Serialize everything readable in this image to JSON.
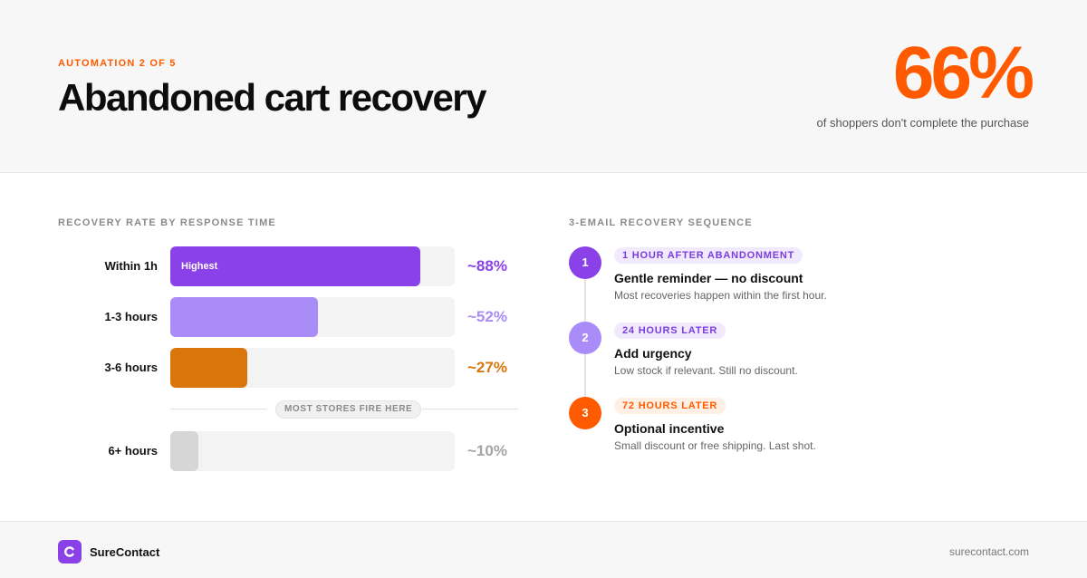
{
  "header": {
    "eyebrow": "AUTOMATION 2 OF 5",
    "title": "Abandoned cart recovery",
    "stat": "66%",
    "stat_caption": "of shoppers don't complete the purchase"
  },
  "chart_data": {
    "type": "bar",
    "title": "RECOVERY RATE BY RESPONSE TIME",
    "categories": [
      "Within 1h",
      "1-3 hours",
      "3-6 hours",
      "6+ hours"
    ],
    "values": [
      88,
      52,
      27,
      10
    ],
    "value_labels": [
      "~88%",
      "~52%",
      "~27%",
      "~10%"
    ],
    "bar_tags": [
      "Highest",
      "",
      "",
      ""
    ],
    "colors": [
      "#8a42e8",
      "#a98cf7",
      "#d9760b",
      "#d6d6d6"
    ],
    "value_colors": [
      "#8a42e8",
      "#a98cf7",
      "#d9760b",
      "#a5a5a5"
    ],
    "annotation": "MOST STORES FIRE HERE",
    "xlim": [
      0,
      100
    ],
    "grid": false,
    "orientation": "horizontal"
  },
  "sequence": {
    "title": "3-EMAIL RECOVERY SEQUENCE",
    "steps": [
      {
        "number": "1",
        "timing": "1 HOUR AFTER ABANDONMENT",
        "title": "Gentle reminder — no discount",
        "description": "Most recoveries happen within the first hour.",
        "dot_color": "#8a42e8",
        "pill_bg": "#f1eafd",
        "pill_color": "#7b3de0"
      },
      {
        "number": "2",
        "timing": "24 HOURS LATER",
        "title": "Add urgency",
        "description": "Low stock if relevant. Still no discount.",
        "dot_color": "#a98cf7",
        "pill_bg": "#f1eafd",
        "pill_color": "#7b3de0"
      },
      {
        "number": "3",
        "timing": "72 HOURS LATER",
        "title": "Optional incentive",
        "description": "Small discount or free shipping. Last shot.",
        "dot_color": "#ff5a00",
        "pill_bg": "#fff0e6",
        "pill_color": "#ff5a00"
      }
    ]
  },
  "footer": {
    "brand": "SureContact",
    "url": "surecontact.com"
  },
  "colors": {
    "accent": "#ff5a00",
    "brand": "#8a42e8"
  }
}
